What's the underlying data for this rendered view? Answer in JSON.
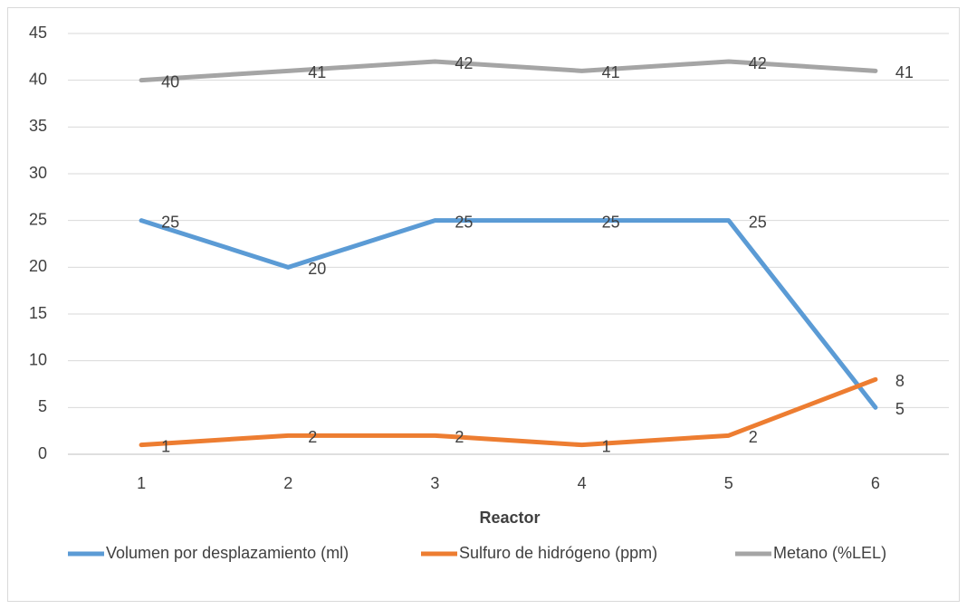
{
  "chart_data": {
    "type": "line",
    "x_label": "Reactor",
    "categories": [
      "1",
      "2",
      "3",
      "4",
      "5",
      "6"
    ],
    "series": [
      {
        "name": "Volumen por desplazamiento (ml)",
        "color": "#5b9bd5",
        "values": [
          25,
          20,
          25,
          25,
          25,
          5
        ]
      },
      {
        "name": "Sulfuro de hidrógeno (ppm)",
        "color": "#ed7d31",
        "values": [
          1,
          2,
          2,
          1,
          2,
          8
        ]
      },
      {
        "name": "Metano (%LEL)",
        "color": "#a5a5a5",
        "values": [
          40,
          41,
          42,
          41,
          42,
          41
        ]
      }
    ],
    "ylim": [
      0,
      45
    ],
    "yticks": [
      0,
      5,
      10,
      15,
      20,
      25,
      30,
      35,
      40,
      45
    ],
    "grid": true,
    "legend": "bottom"
  }
}
